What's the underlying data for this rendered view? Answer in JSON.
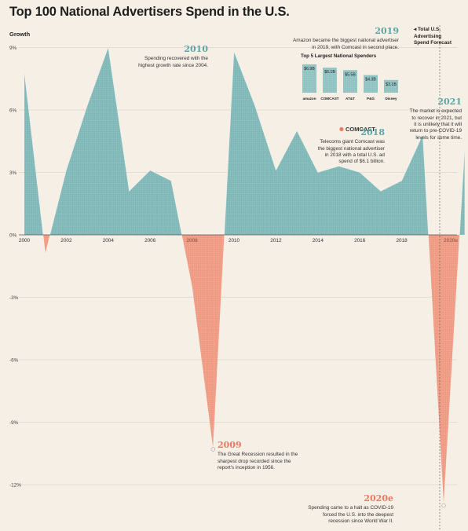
{
  "title": "Top 100 National Advertisers Spend in the U.S.",
  "y_axis_label": "Growth",
  "forecast_label": [
    "Total U.S.",
    "Advertising",
    "Spend Forecast"
  ],
  "colors": {
    "positive": "#7fb8b7",
    "negative": "#ef9a82",
    "accent_teal": "#5aa6a7",
    "accent_red": "#e87a62",
    "background": "#f6efe6"
  },
  "chart_data": {
    "type": "area",
    "title": "Top 100 National Advertisers Spend in the U.S.",
    "ylabel": "Growth",
    "ylim": [
      -13.5,
      9.5
    ],
    "y_ticks": [
      9,
      6,
      3,
      0,
      -3,
      -6,
      -9,
      -12
    ],
    "y_tick_labels": [
      "9%",
      "6%",
      "3%",
      "0%",
      "-3%",
      "-6%",
      "-9%",
      "-12%"
    ],
    "x_tick_labels": [
      {
        "x": 2000,
        "label": "2000"
      },
      {
        "x": 2002,
        "label": "2002"
      },
      {
        "x": 2004,
        "label": "2004"
      },
      {
        "x": 2006,
        "label": "2006"
      },
      {
        "x": 2008,
        "label": "2008"
      },
      {
        "x": 2010,
        "label": "2010"
      },
      {
        "x": 2012,
        "label": "2012"
      },
      {
        "x": 2014,
        "label": "2014"
      },
      {
        "x": 2016,
        "label": "2016"
      },
      {
        "x": 2018,
        "label": "2018"
      },
      {
        "x": 2020,
        "label": "2020e"
      }
    ],
    "series": [
      {
        "values": [
          {
            "x": 2000,
            "y": 7.8
          },
          {
            "x": 2001,
            "y": -0.9
          },
          {
            "x": 2002,
            "y": 3.1
          },
          {
            "x": 2003,
            "y": 6.2
          },
          {
            "x": 2004,
            "y": 9.0
          },
          {
            "x": 2005,
            "y": 2.1
          },
          {
            "x": 2006,
            "y": 3.1
          },
          {
            "x": 2007,
            "y": 2.6
          },
          {
            "x": 2008,
            "y": -2.5
          },
          {
            "x": 2009,
            "y": -10.3
          },
          {
            "x": 2010,
            "y": 8.8
          },
          {
            "x": 2011,
            "y": 6.2
          },
          {
            "x": 2012,
            "y": 3.1
          },
          {
            "x": 2013,
            "y": 5.0
          },
          {
            "x": 2014,
            "y": 3.0
          },
          {
            "x": 2015,
            "y": 3.3
          },
          {
            "x": 2016,
            "y": 3.0
          },
          {
            "x": 2017,
            "y": 2.1
          },
          {
            "x": 2018,
            "y": 2.6
          },
          {
            "x": 2019,
            "y": 4.8
          },
          {
            "x": 2020,
            "y": -13.0
          },
          {
            "x": 2021,
            "y": 4.1
          }
        ]
      }
    ],
    "annotations": [
      {
        "year": "2010",
        "text": [
          "Spending recovered with the",
          "highest growth rate since 2004."
        ]
      },
      {
        "year": "2009",
        "text": [
          "The Great Recession resulted in the",
          "sharpest drop recorded since the",
          "report's inception in 1956."
        ]
      },
      {
        "year": "2018",
        "text": [
          "Telecoms giant Comcast was",
          "the biggest national advertiser",
          "in 2018 with a total U.S. ad",
          "spend of $6.1 billion."
        ]
      },
      {
        "year": "2019",
        "text": [
          "Amazon became the biggest national advertiser",
          "in 2019, with Comcast in second place."
        ]
      },
      {
        "year": "2021",
        "text": [
          "The market is expected",
          "to recover in 2021, but",
          "it is unlikely that it will",
          "return to pre-COVID-19",
          "levels for some time."
        ]
      },
      {
        "year": "2020e",
        "text": [
          "Spending came to a halt as COVID-19",
          "forced the U.S. into the deepest",
          "recession since World War II."
        ]
      }
    ],
    "comcast_logo": "COMCAST",
    "inset": {
      "type": "bar",
      "title": "Top 5 Largest National Spenders",
      "categories": [
        "amazon",
        "COMCAST",
        "AT&T",
        "P&G",
        "Disney"
      ],
      "values": [
        6.9,
        6.1,
        5.5,
        4.3,
        3.1
      ],
      "value_labels": [
        "$6.9B",
        "$6.1B",
        "$5.5B",
        "$4.3B",
        "$3.1B"
      ]
    }
  }
}
